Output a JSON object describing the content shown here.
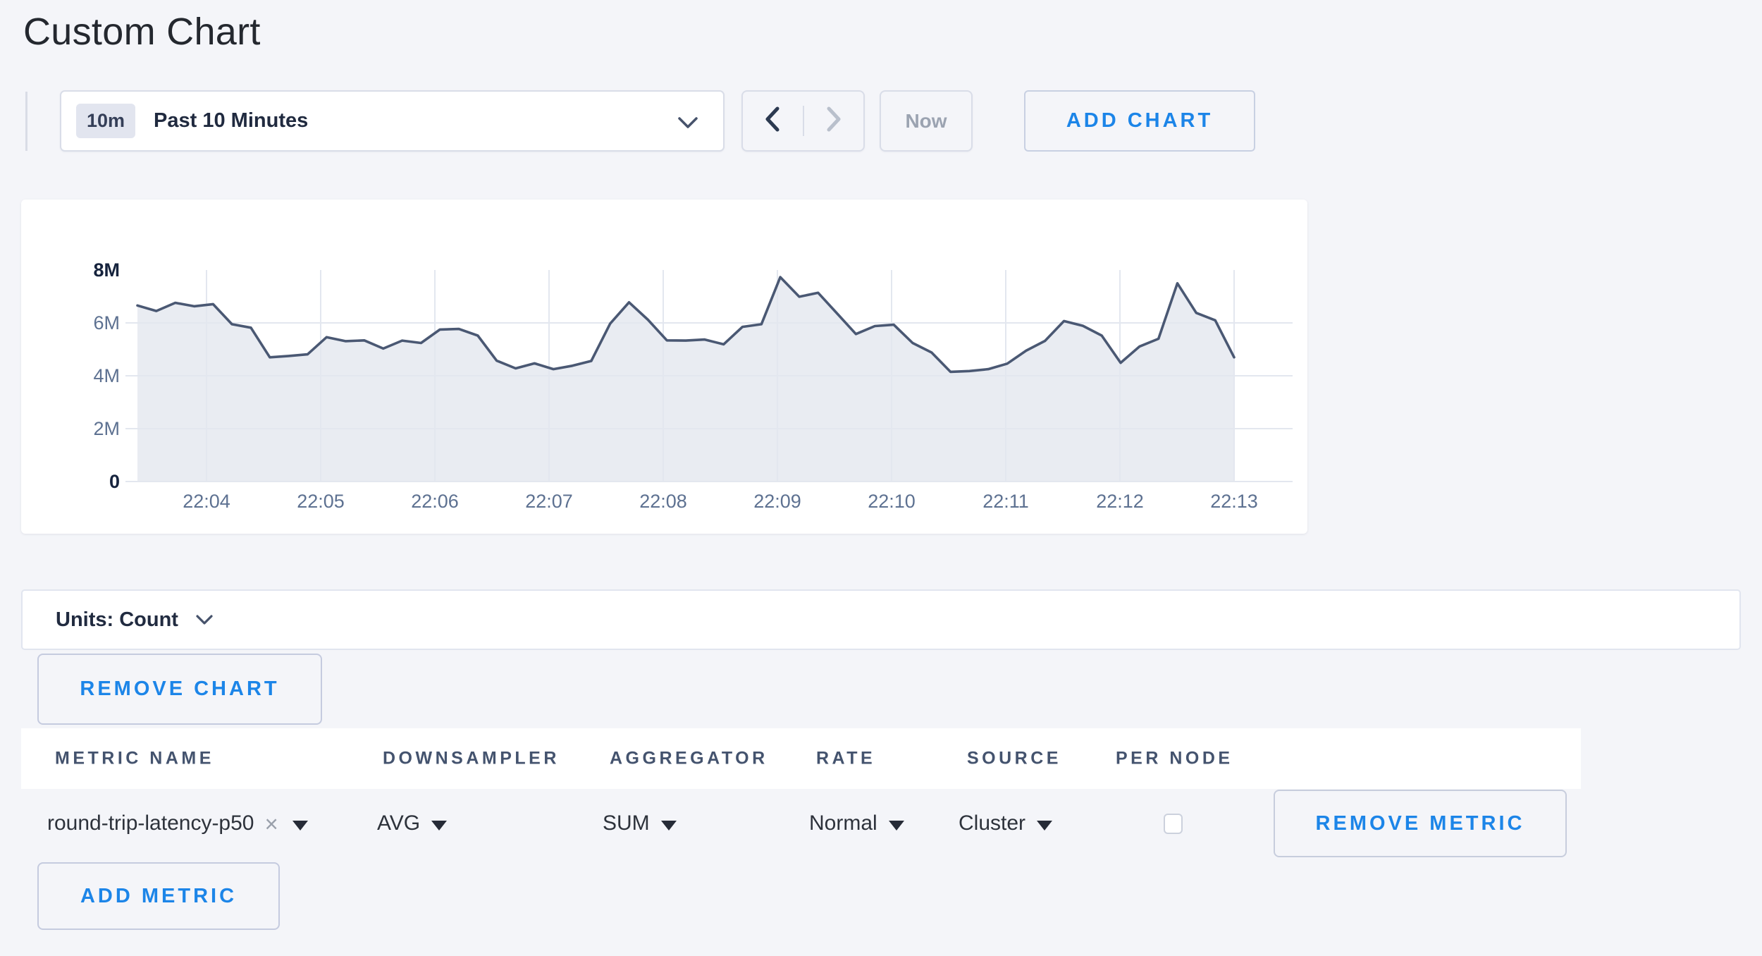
{
  "page": {
    "title": "Custom Chart"
  },
  "toolbar": {
    "time_scale": {
      "badge": "10m",
      "label": "Past 10 Minutes"
    },
    "now_label": "Now",
    "add_chart_label": "ADD CHART"
  },
  "units_bar": {
    "label": "Units: Count"
  },
  "remove_chart_label": "REMOVE CHART",
  "chart_data": {
    "type": "area",
    "unit": "Count",
    "grid": true,
    "legend": false,
    "ylim": [
      0,
      8000000
    ],
    "y_tick_labels": [
      "0",
      "2M",
      "4M",
      "6M",
      "8M"
    ],
    "y_tick_values_millions": [
      0,
      2,
      4,
      6,
      8
    ],
    "x_tick_labels": [
      "22:04",
      "22:05",
      "22:06",
      "22:07",
      "22:08",
      "22:09",
      "22:10",
      "22:11",
      "22:12",
      "22:13"
    ],
    "first_point_time": "22:03:20",
    "sample_interval_seconds": 10,
    "values_millions": [
      6.66,
      6.45,
      6.76,
      6.63,
      6.71,
      5.95,
      5.82,
      4.7,
      4.75,
      4.81,
      5.46,
      5.31,
      5.34,
      5.03,
      5.33,
      5.24,
      5.75,
      5.77,
      5.52,
      4.57,
      4.28,
      4.47,
      4.25,
      4.38,
      4.56,
      5.97,
      6.78,
      6.12,
      5.34,
      5.33,
      5.37,
      5.19,
      5.85,
      5.95,
      7.73,
      6.99,
      7.14,
      6.36,
      5.58,
      5.88,
      5.93,
      5.24,
      4.88,
      4.15,
      4.18,
      4.25,
      4.46,
      4.95,
      5.32,
      6.07,
      5.89,
      5.52,
      4.49,
      5.11,
      5.4,
      7.5,
      6.38,
      6.1,
      4.7
    ]
  },
  "metrics_table": {
    "columns": [
      "METRIC NAME",
      "DOWNSAMPLER",
      "AGGREGATOR",
      "RATE",
      "SOURCE",
      "PER NODE"
    ],
    "rows": [
      {
        "metric_name": "round-trip-latency-p50",
        "downsampler": "AVG",
        "aggregator": "SUM",
        "rate": "Normal",
        "source": "Cluster",
        "per_node_checked": false,
        "remove_label": "REMOVE METRIC"
      }
    ],
    "add_metric_label": "ADD METRIC"
  },
  "icons": {
    "remove_metric_name_glyph": "×"
  },
  "colors": {
    "accent_blue": "#1c85e8",
    "chart_line": "#4a5873",
    "chart_fill": "#e9ecf2",
    "chart_grid": "#e3e7ef",
    "axis_label": "#5d7191",
    "axis_label_strong": "#16233d"
  }
}
